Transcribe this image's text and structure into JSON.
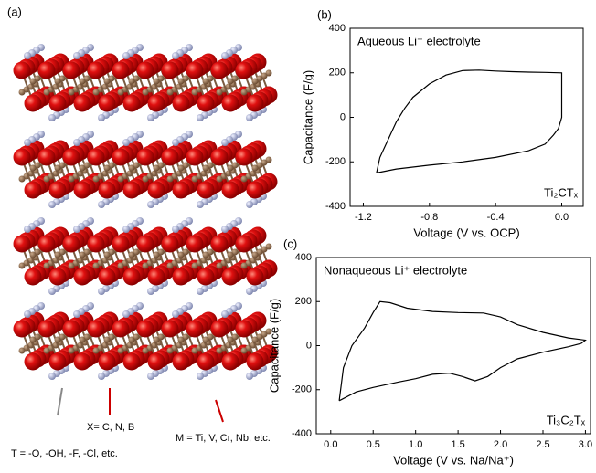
{
  "panel_a": {
    "label": "(a)",
    "annotations": [
      "X= C, N, B",
      "M = Ti, V, Cr, Nb, etc.",
      "T = -O, -OH, -F, -Cl, etc."
    ]
  },
  "chart_data": [
    {
      "type": "line",
      "panel": "(b)",
      "xlabel": "Voltage (V vs. OCP)",
      "ylabel": "Capacitance (F/g)",
      "annotation": "Aqueous Li⁺ electrolyte",
      "material": "Ti₂CTₓ",
      "color": "#000000",
      "xlim": [
        -1.28,
        0.13
      ],
      "ylim": [
        -400,
        400
      ],
      "xticks": [
        -1.2,
        -0.8,
        -0.4,
        {
          "value": 0,
          "label": "0.0"
        }
      ],
      "yticks": [
        400,
        200,
        0,
        -200,
        -400
      ],
      "x": [
        -1.12,
        -1.1,
        -1.05,
        -1.0,
        -0.95,
        -0.9,
        -0.8,
        -0.7,
        -0.6,
        -0.5,
        -0.4,
        -0.3,
        -0.2,
        -0.1,
        0.0,
        0.0,
        0.0,
        -0.02,
        -0.05,
        -0.1,
        -0.2,
        -0.4,
        -0.6,
        -0.8,
        -1.0,
        -1.12
      ],
      "values": [
        -250,
        -180,
        -100,
        -20,
        40,
        90,
        150,
        190,
        210,
        212,
        208,
        205,
        203,
        202,
        200,
        100,
        0,
        -50,
        -80,
        -120,
        -150,
        -180,
        -200,
        -215,
        -232,
        -250
      ]
    },
    {
      "type": "line",
      "panel": "(c)",
      "xlabel": "Voltage (V vs. Na/Na⁺)",
      "ylabel": "Capacitance (F/g)",
      "annotation": "Nonaqueous Li⁺ electrolyte",
      "material": "Ti₃C₂Tₓ",
      "color": "#000000",
      "xlim": [
        -0.17,
        3.06
      ],
      "ylim": [
        -400,
        400
      ],
      "xticks": [
        {
          "value": 0,
          "label": "0.0"
        },
        0.5,
        {
          "value": 1,
          "label": "1.0"
        },
        1.5,
        {
          "value": 2,
          "label": "2.0"
        },
        2.5,
        {
          "value": 3,
          "label": "3.0"
        }
      ],
      "yticks": [
        400,
        200,
        0,
        -200,
        -400
      ],
      "x": [
        0.1,
        0.15,
        0.25,
        0.4,
        0.5,
        0.58,
        0.7,
        0.9,
        1.2,
        1.5,
        1.8,
        2.0,
        2.2,
        2.5,
        2.8,
        3.0,
        2.95,
        2.8,
        2.5,
        2.2,
        2.0,
        1.85,
        1.7,
        1.55,
        1.4,
        1.2,
        1.0,
        0.8,
        0.5,
        0.3,
        0.1
      ],
      "values": [
        -250,
        -100,
        0,
        80,
        150,
        200,
        195,
        170,
        155,
        150,
        148,
        130,
        95,
        60,
        35,
        25,
        10,
        -5,
        -30,
        -60,
        -100,
        -140,
        -160,
        -140,
        -125,
        -130,
        -150,
        -165,
        -190,
        -210,
        -250
      ]
    }
  ]
}
